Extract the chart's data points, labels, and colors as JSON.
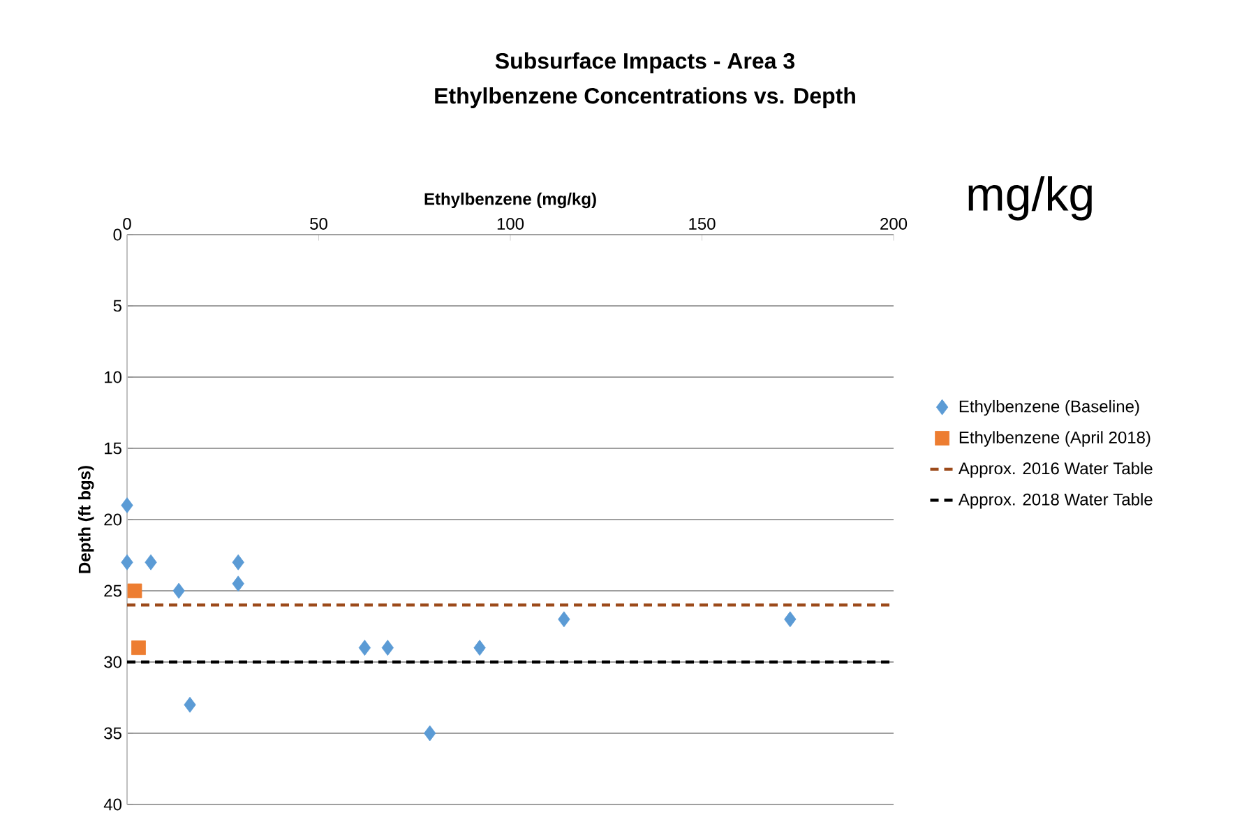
{
  "chart_data": {
    "type": "scatter",
    "title": "Subsurface Impacts - Area 3",
    "subtitle": "Ethylbenzene Concentrations vs. Depth",
    "xlabel": "Ethylbenzene (mg/kg)",
    "ylabel": "Depth (ft bgs)",
    "annotations": [
      "mg/kg"
    ],
    "xlim": [
      0,
      200
    ],
    "xticks": [
      0,
      50,
      100,
      150,
      200
    ],
    "ylim": [
      40,
      0
    ],
    "yticks": [
      0,
      5,
      10,
      15,
      20,
      25,
      30,
      35,
      40
    ],
    "grid": "y",
    "legend": "right",
    "series": [
      {
        "name": "Ethylbenzene (Baseline)",
        "color": "#5b9bd5",
        "marker": "diamond",
        "x": [
          0,
          0,
          6.2,
          13.5,
          16.4,
          29,
          29,
          62,
          68,
          92,
          114,
          173,
          79
        ],
        "values": [
          19,
          23,
          23,
          25,
          33,
          23,
          24.5,
          29,
          29,
          29,
          27,
          27,
          35
        ]
      },
      {
        "name": "Ethylbenzene (April 2018)",
        "color": "#ed7d31",
        "marker": "square",
        "x": [
          2,
          3
        ],
        "values": [
          25,
          29
        ]
      }
    ],
    "ref_lines": [
      {
        "axis": "y",
        "value": 26,
        "label": "Approx. 2016 Water Table",
        "color": "#9c4a1a",
        "line_style": "dashed"
      },
      {
        "axis": "y",
        "value": 30,
        "label": "Approx. 2018 Water Table",
        "color": "#000000",
        "line_style": "dashed"
      }
    ]
  }
}
